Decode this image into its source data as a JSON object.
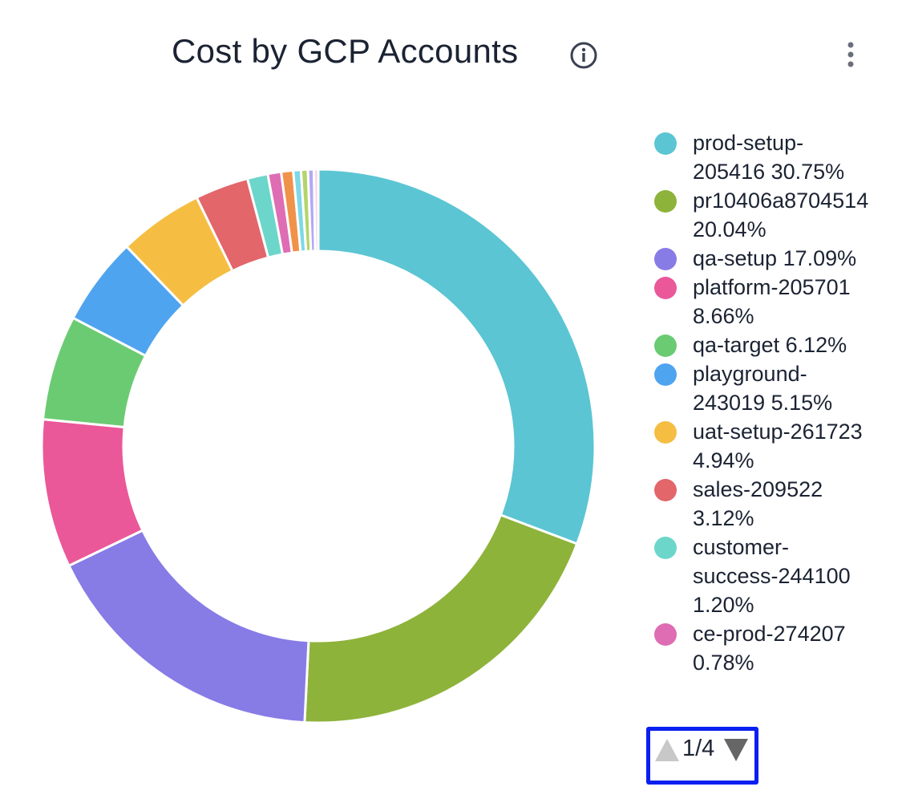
{
  "header": {
    "title": "Cost by GCP Accounts",
    "info_icon": "info-circle-icon",
    "menu_icon": "vertical-dots-icon"
  },
  "chart_data": {
    "type": "pie",
    "variant": "donut",
    "title": "Cost by GCP Accounts",
    "legend_position": "right",
    "slices": [
      {
        "name": "prod-setup-205416",
        "value": 30.75,
        "color": "#5BC5D3",
        "legend": "prod-setup-205416 30.75%"
      },
      {
        "name": "pr10406a8704514",
        "value": 20.04,
        "color": "#8DB33A",
        "legend": "pr10406a8704514 20.04%"
      },
      {
        "name": "qa-setup",
        "value": 17.09,
        "color": "#877BE6",
        "legend": "qa-setup 17.09%"
      },
      {
        "name": "platform-205701",
        "value": 8.66,
        "color": "#EA5899",
        "legend": "platform-205701 8.66%"
      },
      {
        "name": "qa-target",
        "value": 6.12,
        "color": "#6BCB73",
        "legend": "qa-target 6.12%"
      },
      {
        "name": "playground-243019",
        "value": 5.15,
        "color": "#4FA4F0",
        "legend": "playground-243019 5.15%"
      },
      {
        "name": "uat-setup-261723",
        "value": 4.94,
        "color": "#F5BE43",
        "legend": "uat-setup-261723 4.94%"
      },
      {
        "name": "sales-209522",
        "value": 3.12,
        "color": "#E2666A",
        "legend": "sales-209522 3.12%"
      },
      {
        "name": "customer-success-244100",
        "value": 1.2,
        "color": "#6DD6CB",
        "legend": "customer-success-244100 1.20%"
      },
      {
        "name": "ce-prod-274207",
        "value": 0.78,
        "color": "#DE6DB4",
        "legend": "ce-prod-274207 0.78%"
      },
      {
        "value": 0.7,
        "color": "#F0924A"
      },
      {
        "value": 0.45,
        "color": "#7ED8E6"
      },
      {
        "value": 0.4,
        "color": "#B5D46A"
      },
      {
        "value": 0.35,
        "color": "#B3A8F5"
      },
      {
        "value": 0.25,
        "color": "#F7D3E6"
      }
    ]
  },
  "pager": {
    "label": "1/4",
    "prev_icon": "triangle-up-icon",
    "next_icon": "triangle-down-icon"
  }
}
